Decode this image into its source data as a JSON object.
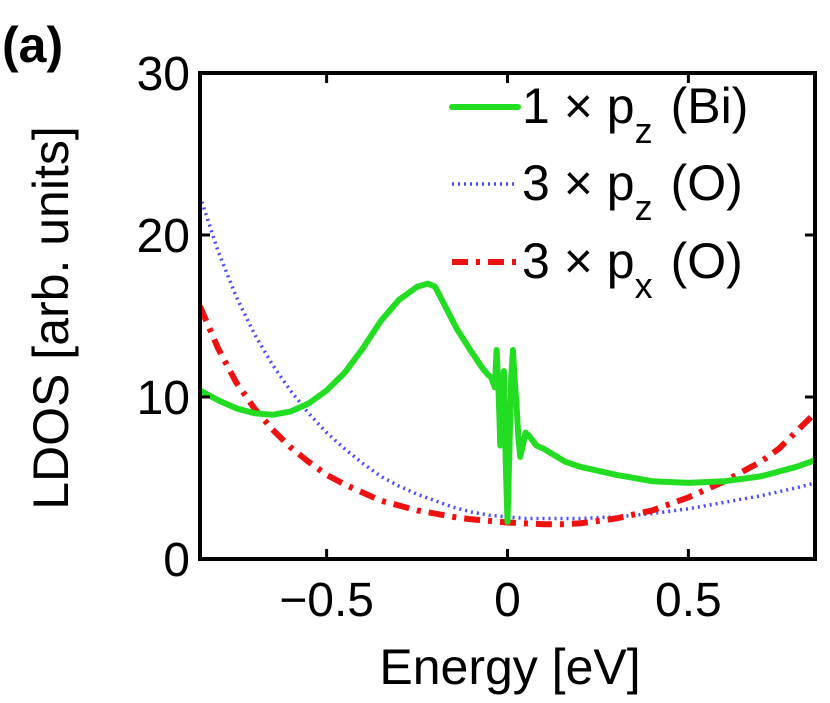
{
  "panel_label": "(a)",
  "chart_data": {
    "type": "line",
    "xlabel": "Energy [eV]",
    "ylabel": "LDOS [arb. units]",
    "xlim": [
      -0.85,
      0.85
    ],
    "ylim": [
      0,
      30
    ],
    "xticks": [
      -0.5,
      0,
      0.5
    ],
    "xtick_labels": [
      "−0.5",
      "0",
      "0.5"
    ],
    "yticks": [
      0,
      10,
      20,
      30
    ],
    "ytick_labels": [
      "0",
      "10",
      "20",
      "30"
    ],
    "grid": false,
    "legend_position": "top-right",
    "series": [
      {
        "name": "1 × p_z (Bi)",
        "legend_prefix": "1 × p",
        "legend_sub": "z",
        "legend_suffix": "(Bi)",
        "color": "#22dd22",
        "style": "solid",
        "x": [
          -0.85,
          -0.8,
          -0.75,
          -0.7,
          -0.65,
          -0.6,
          -0.55,
          -0.5,
          -0.45,
          -0.4,
          -0.35,
          -0.3,
          -0.25,
          -0.22,
          -0.2,
          -0.17,
          -0.14,
          -0.1,
          -0.07,
          -0.055,
          -0.045,
          -0.035,
          -0.03,
          -0.025,
          -0.02,
          -0.015,
          -0.01,
          -0.005,
          0.0,
          0.005,
          0.01,
          0.015,
          0.02,
          0.025,
          0.03,
          0.035,
          0.04,
          0.05,
          0.06,
          0.08,
          0.1,
          0.13,
          0.16,
          0.2,
          0.3,
          0.4,
          0.5,
          0.6,
          0.7,
          0.8,
          0.85
        ],
        "y": [
          10.4,
          9.8,
          9.3,
          9.0,
          8.9,
          9.1,
          9.6,
          10.4,
          11.5,
          13.0,
          14.7,
          16.0,
          16.8,
          17.0,
          16.8,
          15.5,
          14.2,
          12.8,
          11.8,
          11.4,
          11.2,
          10.6,
          12.9,
          10.5,
          7.0,
          8.5,
          11.6,
          6.0,
          2.3,
          6.5,
          11.0,
          12.9,
          11.0,
          9.5,
          7.5,
          6.3,
          6.8,
          7.8,
          7.6,
          7.0,
          6.8,
          6.4,
          6.0,
          5.7,
          5.2,
          4.8,
          4.7,
          4.8,
          5.1,
          5.7,
          6.1
        ]
      },
      {
        "name": "3 × p_z (O)",
        "legend_prefix": "3 × p",
        "legend_sub": "z",
        "legend_suffix": "(O)",
        "color": "#4a4aff",
        "style": "dotted",
        "x": [
          -0.85,
          -0.8,
          -0.75,
          -0.7,
          -0.65,
          -0.6,
          -0.55,
          -0.5,
          -0.45,
          -0.4,
          -0.35,
          -0.3,
          -0.25,
          -0.2,
          -0.15,
          -0.1,
          -0.05,
          0.0,
          0.05,
          0.1,
          0.15,
          0.2,
          0.3,
          0.4,
          0.5,
          0.6,
          0.7,
          0.8,
          0.85
        ],
        "y": [
          22.4,
          19.0,
          16.2,
          13.9,
          12.0,
          10.4,
          9.0,
          7.8,
          6.8,
          5.9,
          5.1,
          4.5,
          4.0,
          3.6,
          3.2,
          2.9,
          2.7,
          2.6,
          2.5,
          2.5,
          2.5,
          2.5,
          2.6,
          2.8,
          3.1,
          3.5,
          3.9,
          4.4,
          4.7
        ]
      },
      {
        "name": "3 × p_x (O)",
        "legend_prefix": "3 × p",
        "legend_sub": "x",
        "legend_suffix": "(O)",
        "color": "#ee1111",
        "style": "dashdot",
        "x": [
          -0.85,
          -0.8,
          -0.75,
          -0.7,
          -0.65,
          -0.6,
          -0.55,
          -0.5,
          -0.45,
          -0.4,
          -0.35,
          -0.3,
          -0.25,
          -0.2,
          -0.15,
          -0.1,
          -0.05,
          0.0,
          0.05,
          0.1,
          0.15,
          0.2,
          0.3,
          0.4,
          0.5,
          0.6,
          0.7,
          0.75,
          0.8,
          0.85
        ],
        "y": [
          15.6,
          13.0,
          10.9,
          9.3,
          8.0,
          6.9,
          6.0,
          5.2,
          4.6,
          4.1,
          3.6,
          3.3,
          3.0,
          2.8,
          2.6,
          2.45,
          2.35,
          2.25,
          2.2,
          2.15,
          2.15,
          2.2,
          2.5,
          3.0,
          3.8,
          4.8,
          6.0,
          6.8,
          7.9,
          9.0
        ]
      }
    ]
  }
}
